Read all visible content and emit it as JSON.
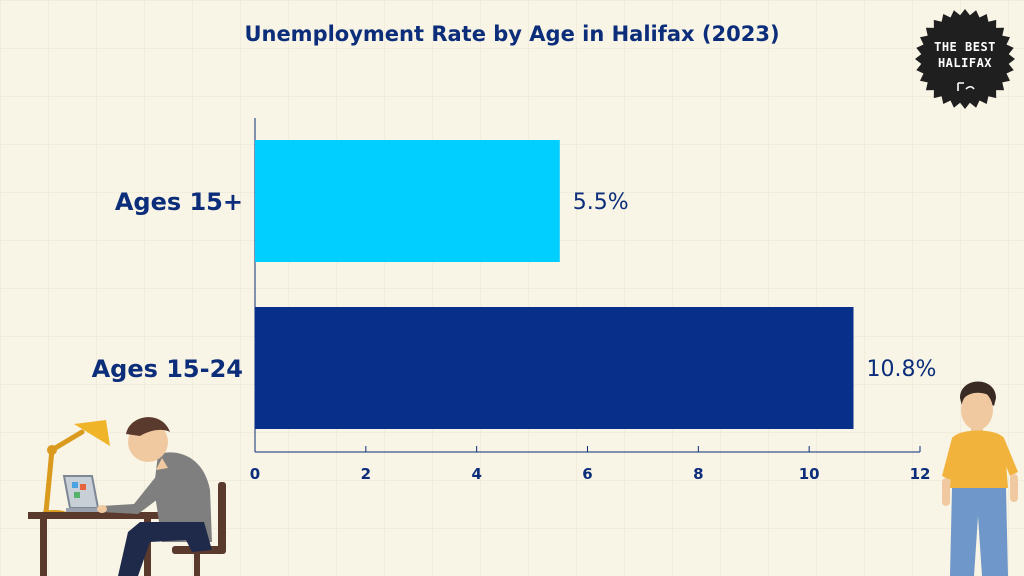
{
  "logo": {
    "line1": "THE BEST",
    "line2": "HALIFAX"
  },
  "chart_data": {
    "type": "bar",
    "orientation": "horizontal",
    "title": "Unemployment Rate by Age in Halifax (2023)",
    "categories": [
      "Ages 15+",
      "Ages 15-24"
    ],
    "values": [
      5.5,
      10.8
    ],
    "value_labels": [
      "5.5%",
      "10.8%"
    ],
    "colors": [
      "#00cfff",
      "#08308a"
    ],
    "xlim": [
      0,
      12
    ],
    "xticks": [
      "0",
      "2",
      "4",
      "6",
      "8",
      "10",
      "12"
    ],
    "xlabel": "",
    "ylabel": "",
    "grid": false,
    "legend": "none"
  }
}
